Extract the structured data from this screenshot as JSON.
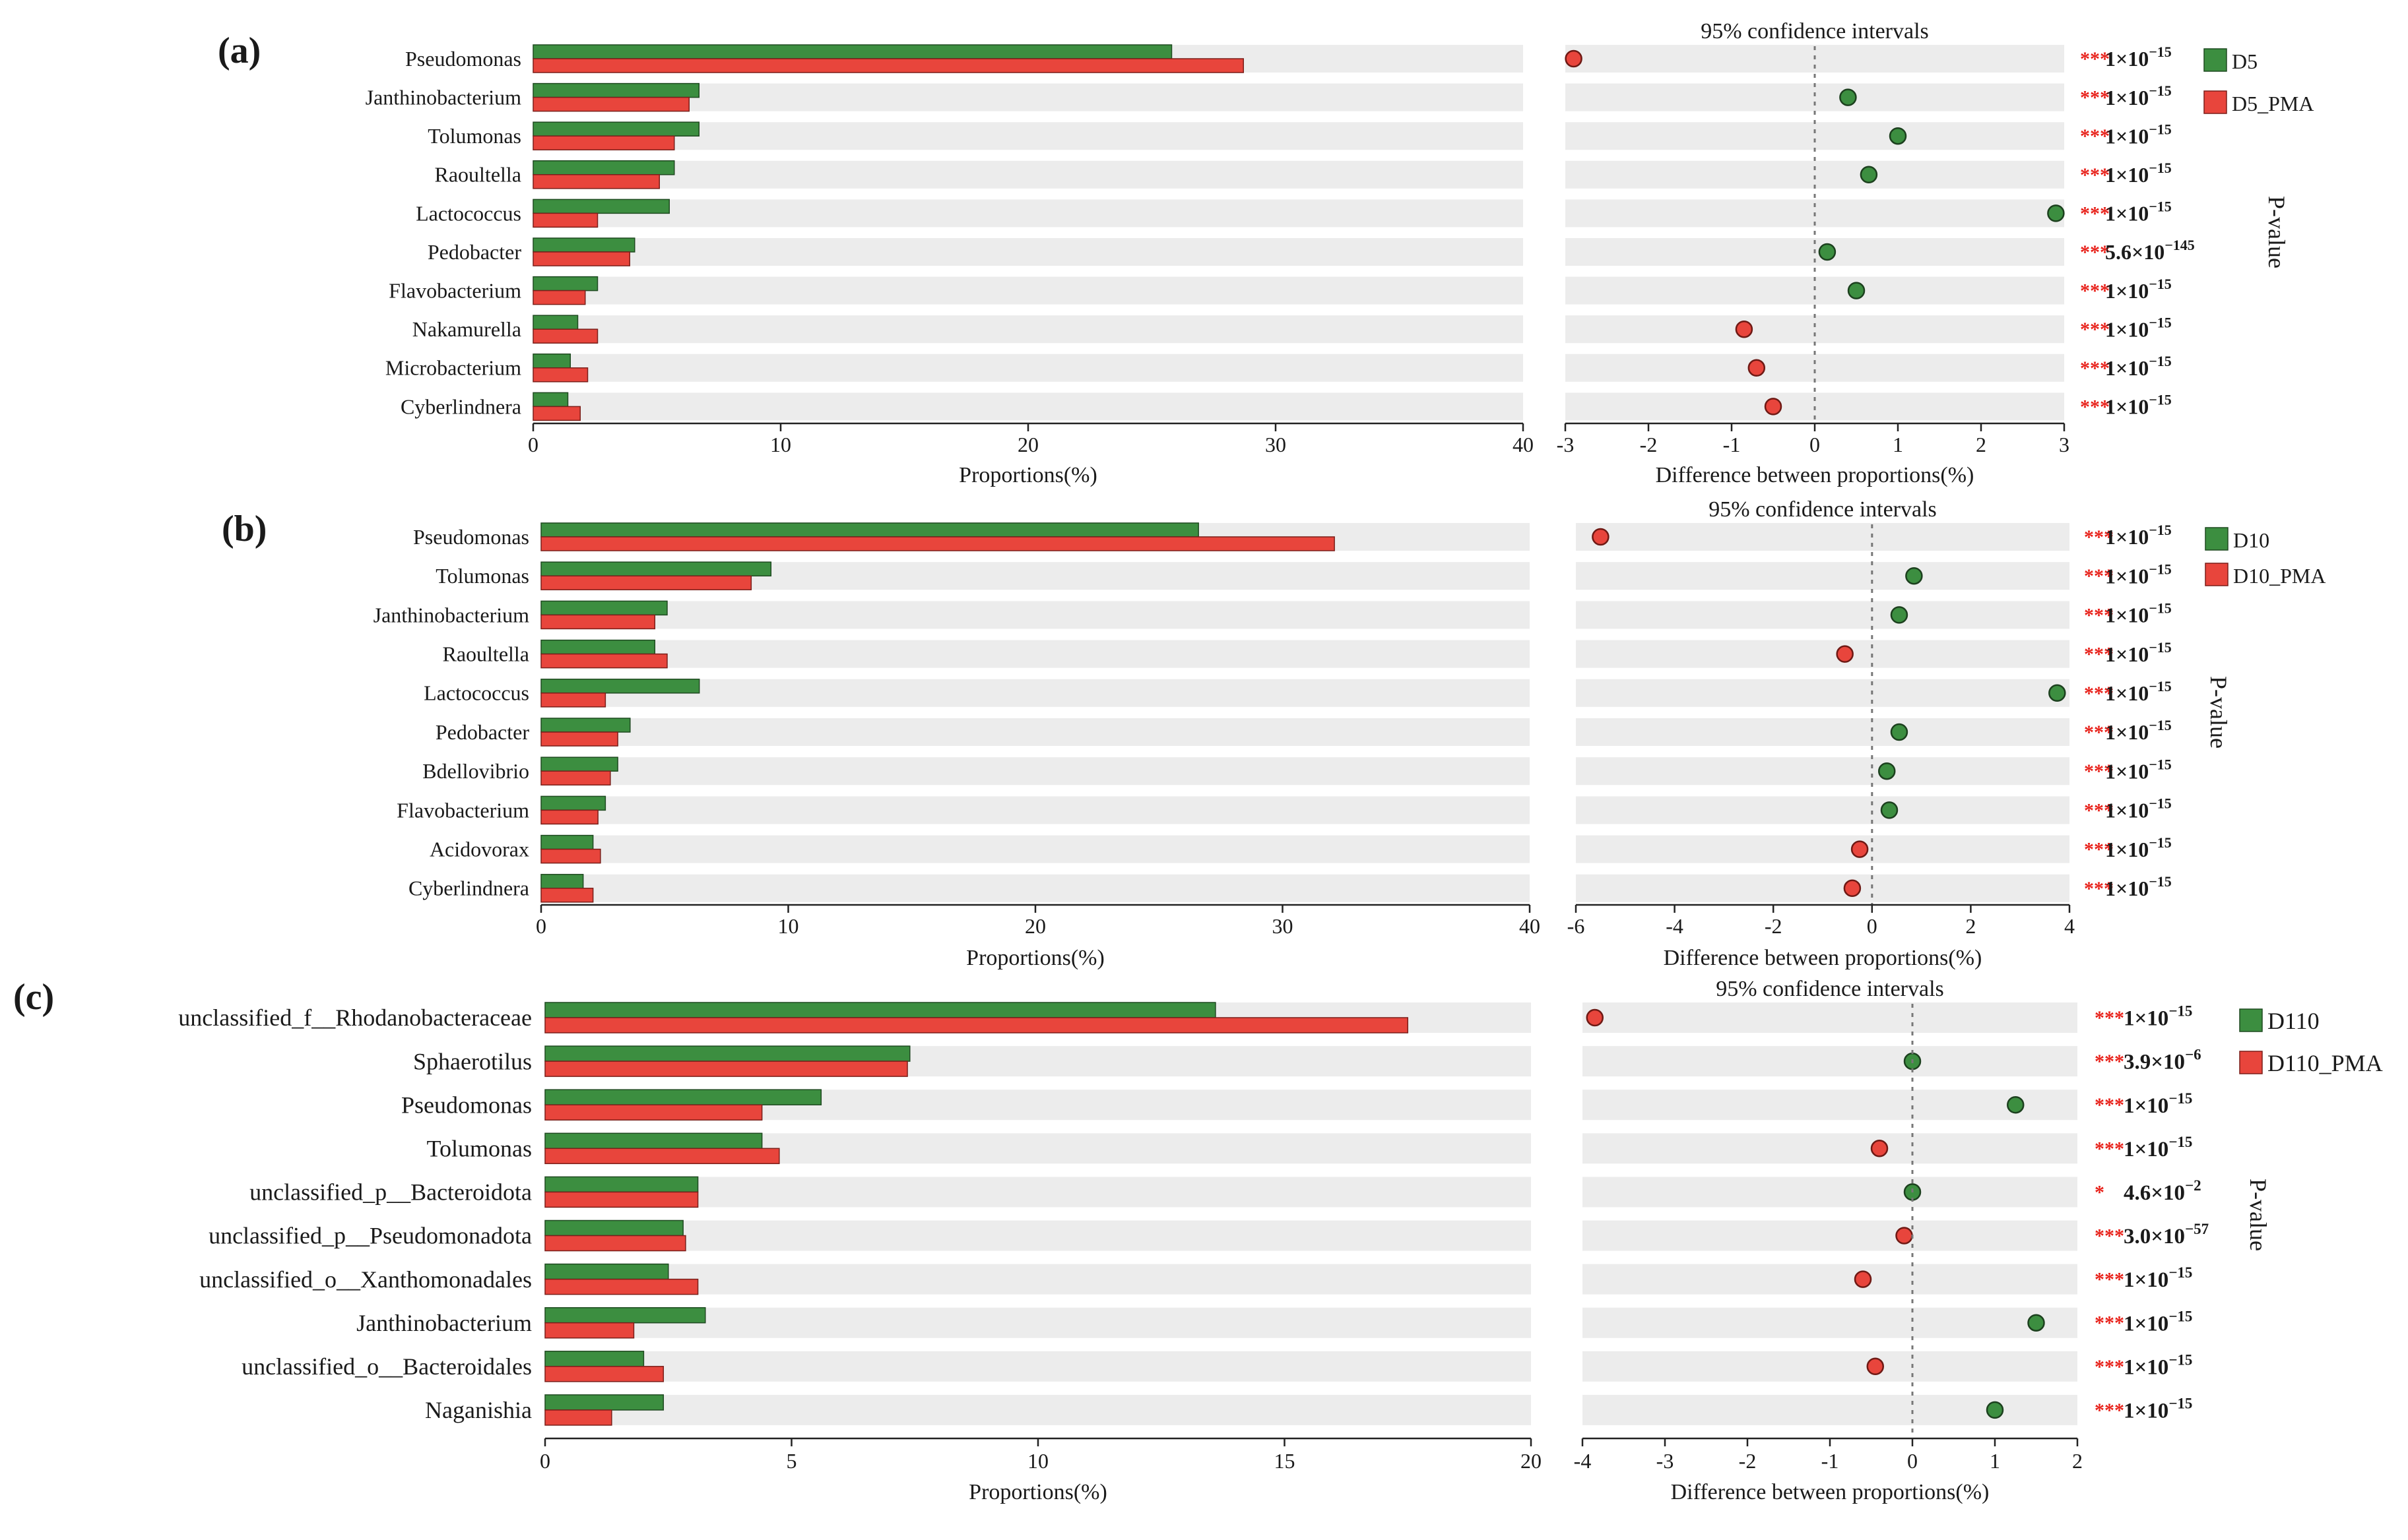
{
  "chart_data": [
    {
      "panel_label": "(a)",
      "type": "bar",
      "xlabel_left": "Proportions(%)",
      "xlim_left": [
        0,
        40
      ],
      "xticks_left": [
        "0",
        "10",
        "20",
        "30",
        "40"
      ],
      "ci_title": "95% confidence intervals",
      "xlabel_right": "Difference between proportions(%)",
      "xlim_right": [
        -3,
        3
      ],
      "xticks_right": [
        "-3",
        "-2",
        "-1",
        "0",
        "1",
        "2",
        "3"
      ],
      "pvalue_label": "P-value",
      "categories": [
        "Pseudomonas",
        "Janthinobacterium",
        "Tolumonas",
        "Raoultella",
        "Lactococcus",
        "Pedobacter",
        "Flavobacterium",
        "Nakamurella",
        "Microbacterium",
        "Cyberlindnera"
      ],
      "series": [
        {
          "name": "D5",
          "color": "#3c8e40",
          "values": [
            25.8,
            6.7,
            6.7,
            5.7,
            5.5,
            4.1,
            2.6,
            1.8,
            1.5,
            1.4
          ]
        },
        {
          "name": "D5_PMA",
          "color": "#e8453c",
          "values": [
            28.7,
            6.3,
            5.7,
            5.1,
            2.6,
            3.9,
            2.1,
            2.6,
            2.2,
            1.9
          ]
        }
      ],
      "differences": [
        -2.9,
        0.4,
        1.0,
        0.65,
        2.9,
        0.15,
        0.5,
        -0.85,
        -0.7,
        -0.5
      ],
      "stars": [
        "***",
        "***",
        "***",
        "***",
        "***",
        "***",
        "***",
        "***",
        "***",
        "***"
      ],
      "pvalues": [
        {
          "mantissa": "1×10",
          "exponent": "−15"
        },
        {
          "mantissa": "1×10",
          "exponent": "−15"
        },
        {
          "mantissa": "1×10",
          "exponent": "−15"
        },
        {
          "mantissa": "1×10",
          "exponent": "−15"
        },
        {
          "mantissa": "1×10",
          "exponent": "−15"
        },
        {
          "mantissa": "5.6×10",
          "exponent": "−145"
        },
        {
          "mantissa": "1×10",
          "exponent": "−15"
        },
        {
          "mantissa": "1×10",
          "exponent": "−15"
        },
        {
          "mantissa": "1×10",
          "exponent": "−15"
        },
        {
          "mantissa": "1×10",
          "exponent": "−15"
        }
      ]
    },
    {
      "panel_label": "(b)",
      "type": "bar",
      "xlabel_left": "Proportions(%)",
      "xlim_left": [
        0,
        40
      ],
      "xticks_left": [
        "0",
        "10",
        "20",
        "30",
        "40"
      ],
      "ci_title": "95% confidence intervals",
      "xlabel_right": "Difference between proportions(%)",
      "xlim_right": [
        -6,
        4
      ],
      "xticks_right": [
        "-6",
        "-4",
        "-2",
        "0",
        "2",
        "4"
      ],
      "pvalue_label": "P-value",
      "categories": [
        "Pseudomonas",
        "Tolumonas",
        "Janthinobacterium",
        "Raoultella",
        "Lactococcus",
        "Pedobacter",
        "Bdellovibrio",
        "Flavobacterium",
        "Acidovorax",
        "Cyberlindnera"
      ],
      "series": [
        {
          "name": "D10",
          "color": "#3c8e40",
          "values": [
            26.6,
            9.3,
            5.1,
            4.6,
            6.4,
            3.6,
            3.1,
            2.6,
            2.1,
            1.7
          ]
        },
        {
          "name": "D10_PMA",
          "color": "#e8453c",
          "values": [
            32.1,
            8.5,
            4.6,
            5.1,
            2.6,
            3.1,
            2.8,
            2.3,
            2.4,
            2.1
          ]
        }
      ],
      "differences": [
        -5.5,
        0.85,
        0.55,
        -0.55,
        3.75,
        0.55,
        0.3,
        0.35,
        -0.25,
        -0.4
      ],
      "stars": [
        "***",
        "***",
        "***",
        "***",
        "***",
        "***",
        "***",
        "***",
        "***",
        "***"
      ],
      "pvalues": [
        {
          "mantissa": "1×10",
          "exponent": "−15"
        },
        {
          "mantissa": "1×10",
          "exponent": "−15"
        },
        {
          "mantissa": "1×10",
          "exponent": "−15"
        },
        {
          "mantissa": "1×10",
          "exponent": "−15"
        },
        {
          "mantissa": "1×10",
          "exponent": "−15"
        },
        {
          "mantissa": "1×10",
          "exponent": "−15"
        },
        {
          "mantissa": "1×10",
          "exponent": "−15"
        },
        {
          "mantissa": "1×10",
          "exponent": "−15"
        },
        {
          "mantissa": "1×10",
          "exponent": "−15"
        },
        {
          "mantissa": "1×10",
          "exponent": "−15"
        }
      ]
    },
    {
      "panel_label": "(c)",
      "type": "bar",
      "xlabel_left": "Proportions(%)",
      "xlim_left": [
        0,
        20
      ],
      "xticks_left": [
        "0",
        "5",
        "10",
        "15",
        "20"
      ],
      "ci_title": "95% confidence intervals",
      "xlabel_right": "Difference between proportions(%)",
      "xlim_right": [
        -4,
        2
      ],
      "xticks_right": [
        "-4",
        "-3",
        "-2",
        "-1",
        "0",
        "1",
        "2"
      ],
      "pvalue_label": "P-value",
      "categories": [
        "unclassified_f__Rhodanobacteraceae",
        "Sphaerotilus",
        "Pseudomonas",
        "Tolumonas",
        "unclassified_p__Bacteroidota",
        "unclassified_p__Pseudomonadota",
        "unclassified_o__Xanthomonadales",
        "Janthinobacterium",
        "unclassified_o__Bacteroidales",
        "Naganishia"
      ],
      "series": [
        {
          "name": "D110",
          "color": "#3c8e40",
          "values": [
            13.6,
            7.4,
            5.6,
            4.4,
            3.1,
            2.8,
            2.5,
            3.25,
            2.0,
            2.4
          ]
        },
        {
          "name": "D110_PMA",
          "color": "#e8453c",
          "values": [
            17.5,
            7.35,
            4.4,
            4.75,
            3.1,
            2.85,
            3.1,
            1.8,
            2.4,
            1.35
          ]
        }
      ],
      "differences": [
        -3.85,
        0.0,
        1.25,
        -0.4,
        0.0,
        -0.1,
        -0.6,
        1.5,
        -0.45,
        1.0
      ],
      "stars": [
        "***",
        "***",
        "***",
        "***",
        "*",
        "***",
        "***",
        "***",
        "***",
        "***"
      ],
      "pvalues": [
        {
          "mantissa": "1×10",
          "exponent": "−15"
        },
        {
          "mantissa": "3.9×10",
          "exponent": "−6"
        },
        {
          "mantissa": "1×10",
          "exponent": "−15"
        },
        {
          "mantissa": "1×10",
          "exponent": "−15"
        },
        {
          "mantissa": "4.6×10",
          "exponent": "−2"
        },
        {
          "mantissa": "3.0×10",
          "exponent": "−57"
        },
        {
          "mantissa": "1×10",
          "exponent": "−15"
        },
        {
          "mantissa": "1×10",
          "exponent": "−15"
        },
        {
          "mantissa": "1×10",
          "exponent": "−15"
        },
        {
          "mantissa": "1×10",
          "exponent": "−15"
        }
      ]
    }
  ]
}
